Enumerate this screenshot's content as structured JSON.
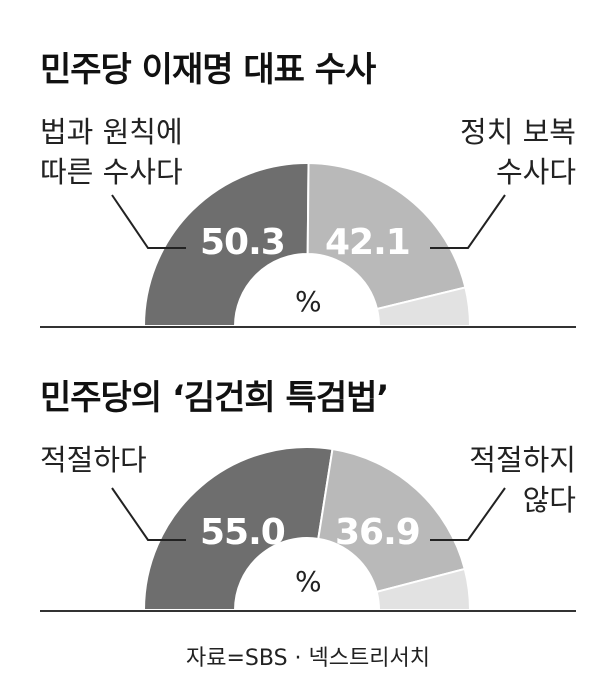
{
  "source_label": "자료=SBS · 넥스트리서치",
  "chart_data": [
    {
      "type": "pie",
      "title": "민주당 이재명 대표 수사",
      "unit_label": "%",
      "slices": [
        {
          "label_lines": [
            "법과 원칙에",
            "따른 수사다"
          ],
          "value": 50.3,
          "value_label": "50.3",
          "color": "#6e6e6e"
        },
        {
          "label_lines": [
            "정치 보복",
            "수사다"
          ],
          "value": 42.1,
          "value_label": "42.1",
          "color": "#b9b9b9"
        },
        {
          "value": 7.6,
          "color": "#e2e2e2"
        }
      ]
    },
    {
      "type": "pie",
      "title": "민주당의 ‘김건희 특검법’",
      "unit_label": "%",
      "slices": [
        {
          "label_lines": [
            "적절하다"
          ],
          "value": 55.0,
          "value_label": "55.0",
          "color": "#6e6e6e"
        },
        {
          "label_lines": [
            "적절하지",
            "않다"
          ],
          "value": 36.9,
          "value_label": "36.9",
          "color": "#b9b9b9"
        },
        {
          "value": 8.1,
          "color": "#e2e2e2"
        }
      ]
    }
  ]
}
